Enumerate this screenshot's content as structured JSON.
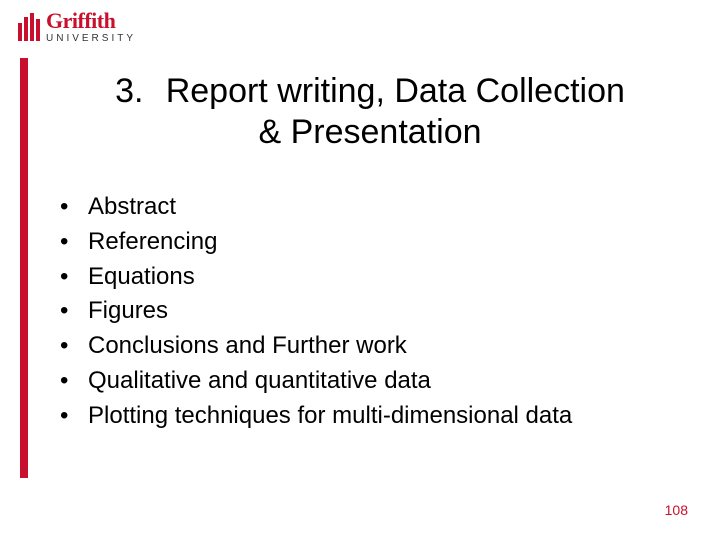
{
  "logo": {
    "name": "Griffith",
    "sub": "UNIVERSITY",
    "brand_color": "#c8102e"
  },
  "title": {
    "number": "3.",
    "line1": "Report writing, Data Collection",
    "line2": "& Presentation",
    "fontsize": 34,
    "color": "#000000"
  },
  "bullets": {
    "items": [
      "Abstract",
      "Referencing",
      "Equations",
      "Figures",
      "Conclusions and Further work",
      "Qualitative and quantitative data",
      "Plotting techniques for multi-dimensional data"
    ],
    "fontsize": 24,
    "color": "#000000",
    "marker": "•"
  },
  "page_number": "108",
  "page_number_color": "#c8102e",
  "background_color": "#ffffff"
}
